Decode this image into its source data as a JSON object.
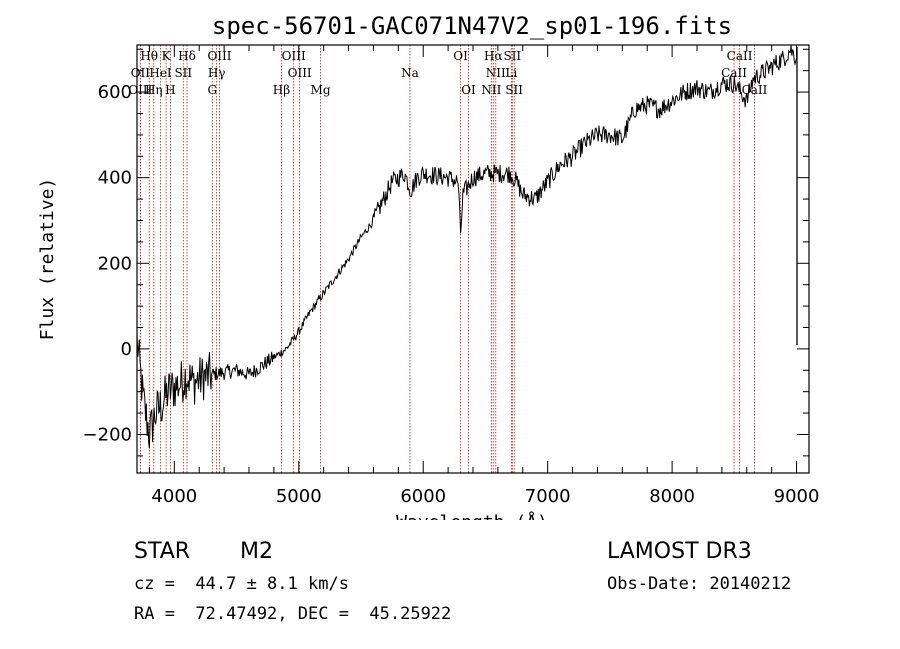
{
  "chart_data": {
    "type": "line",
    "title": "spec-56701-GAC071N47V2_sp01-196.fits",
    "xlabel": "Wavelength (Å)",
    "ylabel": "Flux (relative)",
    "xlim": [
      3700,
      9100
    ],
    "ylim": [
      -290,
      710
    ],
    "x_ticks": [
      4000,
      5000,
      6000,
      7000,
      8000,
      9000
    ],
    "y_ticks": [
      -200,
      0,
      200,
      400,
      600
    ],
    "series": [
      {
        "name": "flux",
        "x": [
          3700,
          3750,
          3800,
          3850,
          3900,
          3950,
          4000,
          4050,
          4100,
          4150,
          4200,
          4300,
          4400,
          4500,
          4600,
          4700,
          4800,
          4900,
          5000,
          5100,
          5200,
          5300,
          5400,
          5500,
          5600,
          5700,
          5750,
          5800,
          5850,
          5900,
          5950,
          6000,
          6100,
          6200,
          6280,
          6300,
          6320,
          6400,
          6500,
          6600,
          6700,
          6750,
          6800,
          6900,
          7000,
          7100,
          7200,
          7300,
          7400,
          7500,
          7600,
          7700,
          7800,
          7900,
          8000,
          8100,
          8200,
          8300,
          8400,
          8500,
          8550,
          8600,
          8650,
          8700,
          8800,
          8900,
          8950,
          9000
        ],
        "y": [
          20,
          -120,
          -200,
          -150,
          -130,
          -100,
          -90,
          -80,
          -60,
          -80,
          -70,
          -60,
          -55,
          -50,
          -60,
          -40,
          -20,
          0,
          40,
          90,
          130,
          170,
          210,
          260,
          300,
          360,
          390,
          400,
          410,
          370,
          400,
          410,
          405,
          400,
          390,
          270,
          360,
          400,
          410,
          410,
          410,
          390,
          360,
          350,
          390,
          430,
          450,
          480,
          500,
          500,
          490,
          560,
          570,
          560,
          580,
          600,
          610,
          600,
          620,
          620,
          600,
          580,
          630,
          640,
          660,
          680,
          700,
          680
        ]
      }
    ],
    "spectral_lines": [
      {
        "label": "Hθ",
        "wavelength": 3798,
        "row": 0
      },
      {
        "label": "K",
        "wavelength": 3934,
        "row": 0
      },
      {
        "label": "Hδ",
        "wavelength": 4102,
        "row": 0
      },
      {
        "label": "OIII",
        "wavelength": 4363,
        "row": 0
      },
      {
        "label": "OIII",
        "wavelength": 4959,
        "row": 0
      },
      {
        "label": "OI",
        "wavelength": 6300,
        "row": 0
      },
      {
        "label": "Hα",
        "wavelength": 6563,
        "row": 0
      },
      {
        "label": "SII",
        "wavelength": 6716,
        "row": 0
      },
      {
        "label": "CaII",
        "wavelength": 8542,
        "row": 0
      },
      {
        "label": "OII",
        "wavelength": 3727,
        "row": 1
      },
      {
        "label": "HeI",
        "wavelength": 3889,
        "row": 1
      },
      {
        "label": "SII",
        "wavelength": 4072,
        "row": 1
      },
      {
        "label": "Hγ",
        "wavelength": 4340,
        "row": 1
      },
      {
        "label": "OIII",
        "wavelength": 5007,
        "row": 1
      },
      {
        "label": "Na",
        "wavelength": 5893,
        "row": 1
      },
      {
        "label": "NII",
        "wavelength": 6583,
        "row": 1
      },
      {
        "label": "Li",
        "wavelength": 6708,
        "row": 1
      },
      {
        "label": "CaII",
        "wavelength": 8498,
        "row": 1
      },
      {
        "label": "OIII",
        "wavelength": 3727,
        "row": 2
      },
      {
        "label": "Hη",
        "wavelength": 3835,
        "row": 2
      },
      {
        "label": "H",
        "wavelength": 3968,
        "row": 2
      },
      {
        "label": "G",
        "wavelength": 4305,
        "row": 2
      },
      {
        "label": "Hβ",
        "wavelength": 4861,
        "row": 2
      },
      {
        "label": "Mg",
        "wavelength": 5175,
        "row": 2
      },
      {
        "label": "OI",
        "wavelength": 6364,
        "row": 2
      },
      {
        "label": "NII",
        "wavelength": 6548,
        "row": 2
      },
      {
        "label": "SII",
        "wavelength": 6731,
        "row": 2
      },
      {
        "label": "CaII",
        "wavelength": 8662,
        "row": 2
      }
    ],
    "colors": {
      "spectrum": "#000000",
      "lines": "#b22222",
      "frame": "#000000"
    }
  },
  "info": {
    "object_type": "STAR",
    "subclass": "M2",
    "survey": "LAMOST DR3",
    "redshift": "cz =  44.7 ± 8.1 km/s",
    "obs_date": "Obs-Date: 20140212",
    "coords": "RA =  72.47492, DEC =  45.25922"
  }
}
